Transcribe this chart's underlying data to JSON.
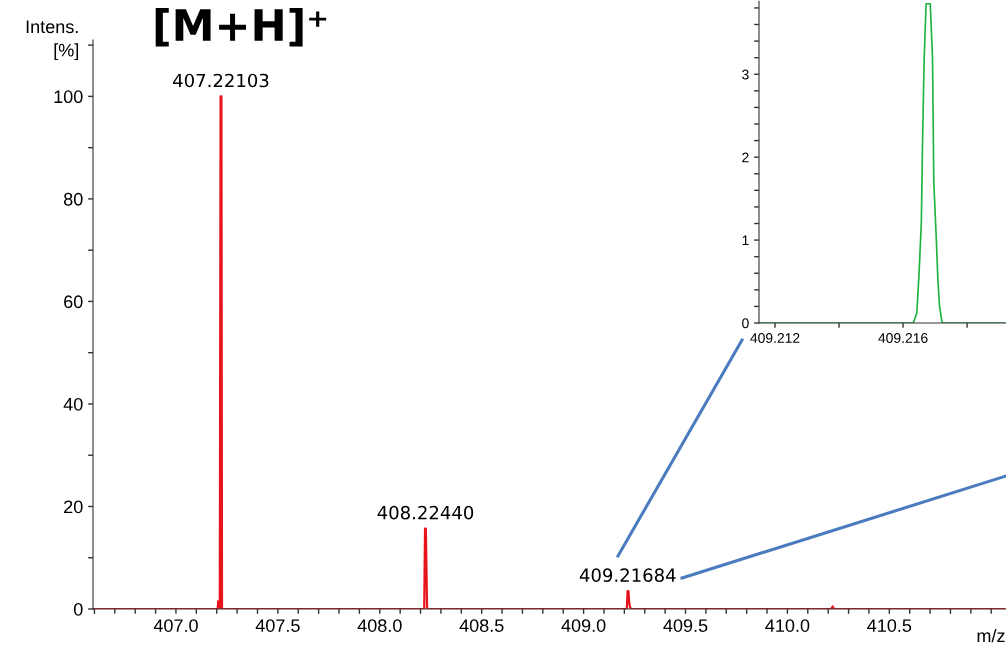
{
  "chart_data": [
    {
      "type": "line",
      "title": "[M+H]⁺",
      "xlabel": "m/z",
      "ylabel": "Intens.\n[%]",
      "x": [
        406.593,
        407.205,
        407.207,
        407.212,
        407.215,
        407.219,
        407.223,
        407.226,
        408.218,
        408.222,
        408.226,
        408.232,
        408.236,
        409.212,
        409.216,
        409.22,
        409.224,
        409.228,
        409.234,
        410.215,
        410.222,
        410.229,
        411.07
      ],
      "series": [
        {
          "color": "#e8141c",
          "values": [
            0,
            0,
            1.5,
            1.5,
            0,
            100,
            100,
            0,
            0,
            15.7,
            15.7,
            0.3,
            0,
            0,
            3.5,
            3.5,
            1.2,
            0.3,
            0,
            0,
            0.5,
            0,
            0
          ]
        }
      ],
      "annotations": [
        {
          "text": "407.22103",
          "x": 407.22103,
          "y": 100
        },
        {
          "text": "408.22440",
          "x": 408.2244,
          "y": 15.7
        },
        {
          "text": "409.21684",
          "x": 409.21684,
          "y": 3.5
        }
      ],
      "xlim": [
        406.593,
        411.07
      ],
      "ylim": [
        0,
        111
      ],
      "xticks": [
        {
          "value": 406.6,
          "label": null
        },
        {
          "value": 406.7,
          "label": null
        },
        {
          "value": 406.8,
          "label": null
        },
        {
          "value": 406.9,
          "label": null
        },
        {
          "value": 407.0,
          "label": "407.0"
        },
        {
          "value": 407.1,
          "label": null
        },
        {
          "value": 407.2,
          "label": null
        },
        {
          "value": 407.3,
          "label": null
        },
        {
          "value": 407.4,
          "label": null
        },
        {
          "value": 407.5,
          "label": "407.5"
        },
        {
          "value": 407.6,
          "label": null
        },
        {
          "value": 407.7,
          "label": null
        },
        {
          "value": 407.8,
          "label": null
        },
        {
          "value": 407.9,
          "label": null
        },
        {
          "value": 408.0,
          "label": "408.0"
        },
        {
          "value": 408.1,
          "label": null
        },
        {
          "value": 408.2,
          "label": null
        },
        {
          "value": 408.3,
          "label": null
        },
        {
          "value": 408.4,
          "label": null
        },
        {
          "value": 408.5,
          "label": "408.5"
        },
        {
          "value": 408.6,
          "label": null
        },
        {
          "value": 408.7,
          "label": null
        },
        {
          "value": 408.8,
          "label": null
        },
        {
          "value": 408.9,
          "label": null
        },
        {
          "value": 409.0,
          "label": "409.0"
        },
        {
          "value": 409.1,
          "label": null
        },
        {
          "value": 409.2,
          "label": null
        },
        {
          "value": 409.3,
          "label": null
        },
        {
          "value": 409.4,
          "label": null
        },
        {
          "value": 409.5,
          "label": "409.5"
        },
        {
          "value": 409.6,
          "label": null
        },
        {
          "value": 409.7,
          "label": null
        },
        {
          "value": 409.8,
          "label": null
        },
        {
          "value": 409.9,
          "label": null
        },
        {
          "value": 410.0,
          "label": "410.0"
        },
        {
          "value": 410.1,
          "label": null
        },
        {
          "value": 410.2,
          "label": null
        },
        {
          "value": 410.3,
          "label": null
        },
        {
          "value": 410.4,
          "label": null
        },
        {
          "value": 410.5,
          "label": "410.5"
        },
        {
          "value": 410.6,
          "label": null
        },
        {
          "value": 410.7,
          "label": null
        },
        {
          "value": 410.8,
          "label": null
        },
        {
          "value": 410.9,
          "label": null
        },
        {
          "value": 411.0,
          "label": null
        }
      ],
      "yticks": [
        0,
        {
          "value": 10,
          "label": null
        },
        20,
        {
          "value": 30,
          "label": null
        },
        40,
        {
          "value": 50,
          "label": null
        },
        60,
        {
          "value": 70,
          "label": null
        },
        80,
        {
          "value": 90,
          "label": null
        },
        100,
        {
          "value": 110,
          "label": null
        }
      ],
      "grid": false,
      "legend": false
    },
    {
      "type": "line",
      "x": [
        409.2115,
        409.21632,
        409.21643,
        409.2165,
        409.21657,
        409.21661,
        409.21666,
        409.21672,
        409.21685,
        409.21692,
        409.21696,
        409.21704,
        409.21709,
        409.21714,
        409.21722,
        409.2192
      ],
      "series": [
        {
          "color": "#1db33f",
          "values": [
            0,
            0,
            0.12,
            0.6,
            1.2,
            2.2,
            3.2,
            3.85,
            3.85,
            3.2,
            1.7,
            1.0,
            0.5,
            0.2,
            0,
            0
          ]
        }
      ],
      "xlim": [
        409.2115,
        409.2192
      ],
      "ylim": [
        0,
        3.88
      ],
      "xticks": [
        409.212,
        {
          "value": 409.214,
          "label": null
        },
        409.216,
        {
          "value": 409.218,
          "label": null
        }
      ],
      "yticks": [
        0,
        {
          "value": 0.2,
          "label": null
        },
        {
          "value": 0.4,
          "label": null
        },
        {
          "value": 0.6,
          "label": null
        },
        {
          "value": 0.8,
          "label": null
        },
        1,
        {
          "value": 1.2,
          "label": null
        },
        {
          "value": 1.4,
          "label": null
        },
        {
          "value": 1.6,
          "label": null
        },
        {
          "value": 1.8,
          "label": null
        },
        2,
        {
          "value": 2.2,
          "label": null
        },
        {
          "value": 2.4,
          "label": null
        },
        {
          "value": 2.6,
          "label": null
        },
        {
          "value": 2.8,
          "label": null
        },
        3,
        {
          "value": 3.2,
          "label": null
        },
        {
          "value": 3.4,
          "label": null
        },
        {
          "value": 3.6,
          "label": null
        },
        {
          "value": 3.8,
          "label": null
        }
      ],
      "grid": false,
      "legend": false
    }
  ]
}
